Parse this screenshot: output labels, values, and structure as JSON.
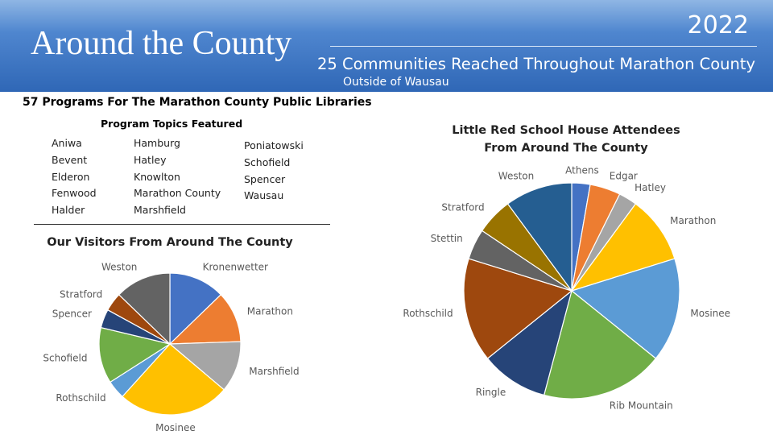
{
  "header": {
    "title": "Around the County",
    "year": "2022",
    "subtitle": "25 Communities Reached Throughout Marathon County",
    "subtitle2": "Outside of Wausau"
  },
  "programs": {
    "title": "57 Programs For The Marathon County Public Libraries",
    "topics_title": "Program Topics Featured",
    "col1": [
      "Aniwa",
      "Bevent",
      "Elderon",
      "Fenwood",
      "Halder"
    ],
    "col2": [
      "Hamburg",
      "Hatley",
      "Knowlton",
      "Marathon County",
      "Marshfield"
    ],
    "col3": [
      "Poniatowski",
      "Schofield",
      "Spencer",
      "Wausau"
    ]
  },
  "chart_data": [
    {
      "type": "pie",
      "title": "Our Visitors From Around The County",
      "legend": "none",
      "slices": [
        {
          "label": "Kronenwetter",
          "value": 12,
          "color": "#4472c4"
        },
        {
          "label": "Marathon",
          "value": 11,
          "color": "#ed7d31"
        },
        {
          "label": "Marshfield",
          "value": 11,
          "color": "#a5a5a5"
        },
        {
          "label": "Mosinee",
          "value": 24,
          "color": "#ffc000"
        },
        {
          "label": "Rothschild",
          "value": 4,
          "color": "#5b9bd5"
        },
        {
          "label": "Schofield",
          "value": 12,
          "color": "#70ad47"
        },
        {
          "label": "Spencer",
          "value": 4,
          "color": "#264478"
        },
        {
          "label": "Stratford",
          "value": 4,
          "color": "#9e480e"
        },
        {
          "label": "Weston",
          "value": 12,
          "color": "#636363"
        }
      ]
    },
    {
      "type": "pie",
      "title": "Little Red School House Attendees From Around The County",
      "legend": "none",
      "slices": [
        {
          "label": "Athens",
          "value": 3,
          "color": "#4472c4"
        },
        {
          "label": "Edgar",
          "value": 5,
          "color": "#ed7d31"
        },
        {
          "label": "Hatley",
          "value": 3,
          "color": "#a5a5a5"
        },
        {
          "label": "Marathon",
          "value": 11,
          "color": "#ffc000"
        },
        {
          "label": "Mosinee",
          "value": 17,
          "color": "#5b9bd5"
        },
        {
          "label": "Rib Mountain",
          "value": 20,
          "color": "#70ad47"
        },
        {
          "label": "Ringle",
          "value": 11,
          "color": "#264478"
        },
        {
          "label": "Rothschild",
          "value": 17,
          "color": "#9e480e"
        },
        {
          "label": "Stettin",
          "value": 5,
          "color": "#636363"
        },
        {
          "label": "Stratford",
          "value": 6,
          "color": "#997300"
        },
        {
          "label": "Weston",
          "value": 11,
          "color": "#255e91"
        }
      ]
    }
  ]
}
